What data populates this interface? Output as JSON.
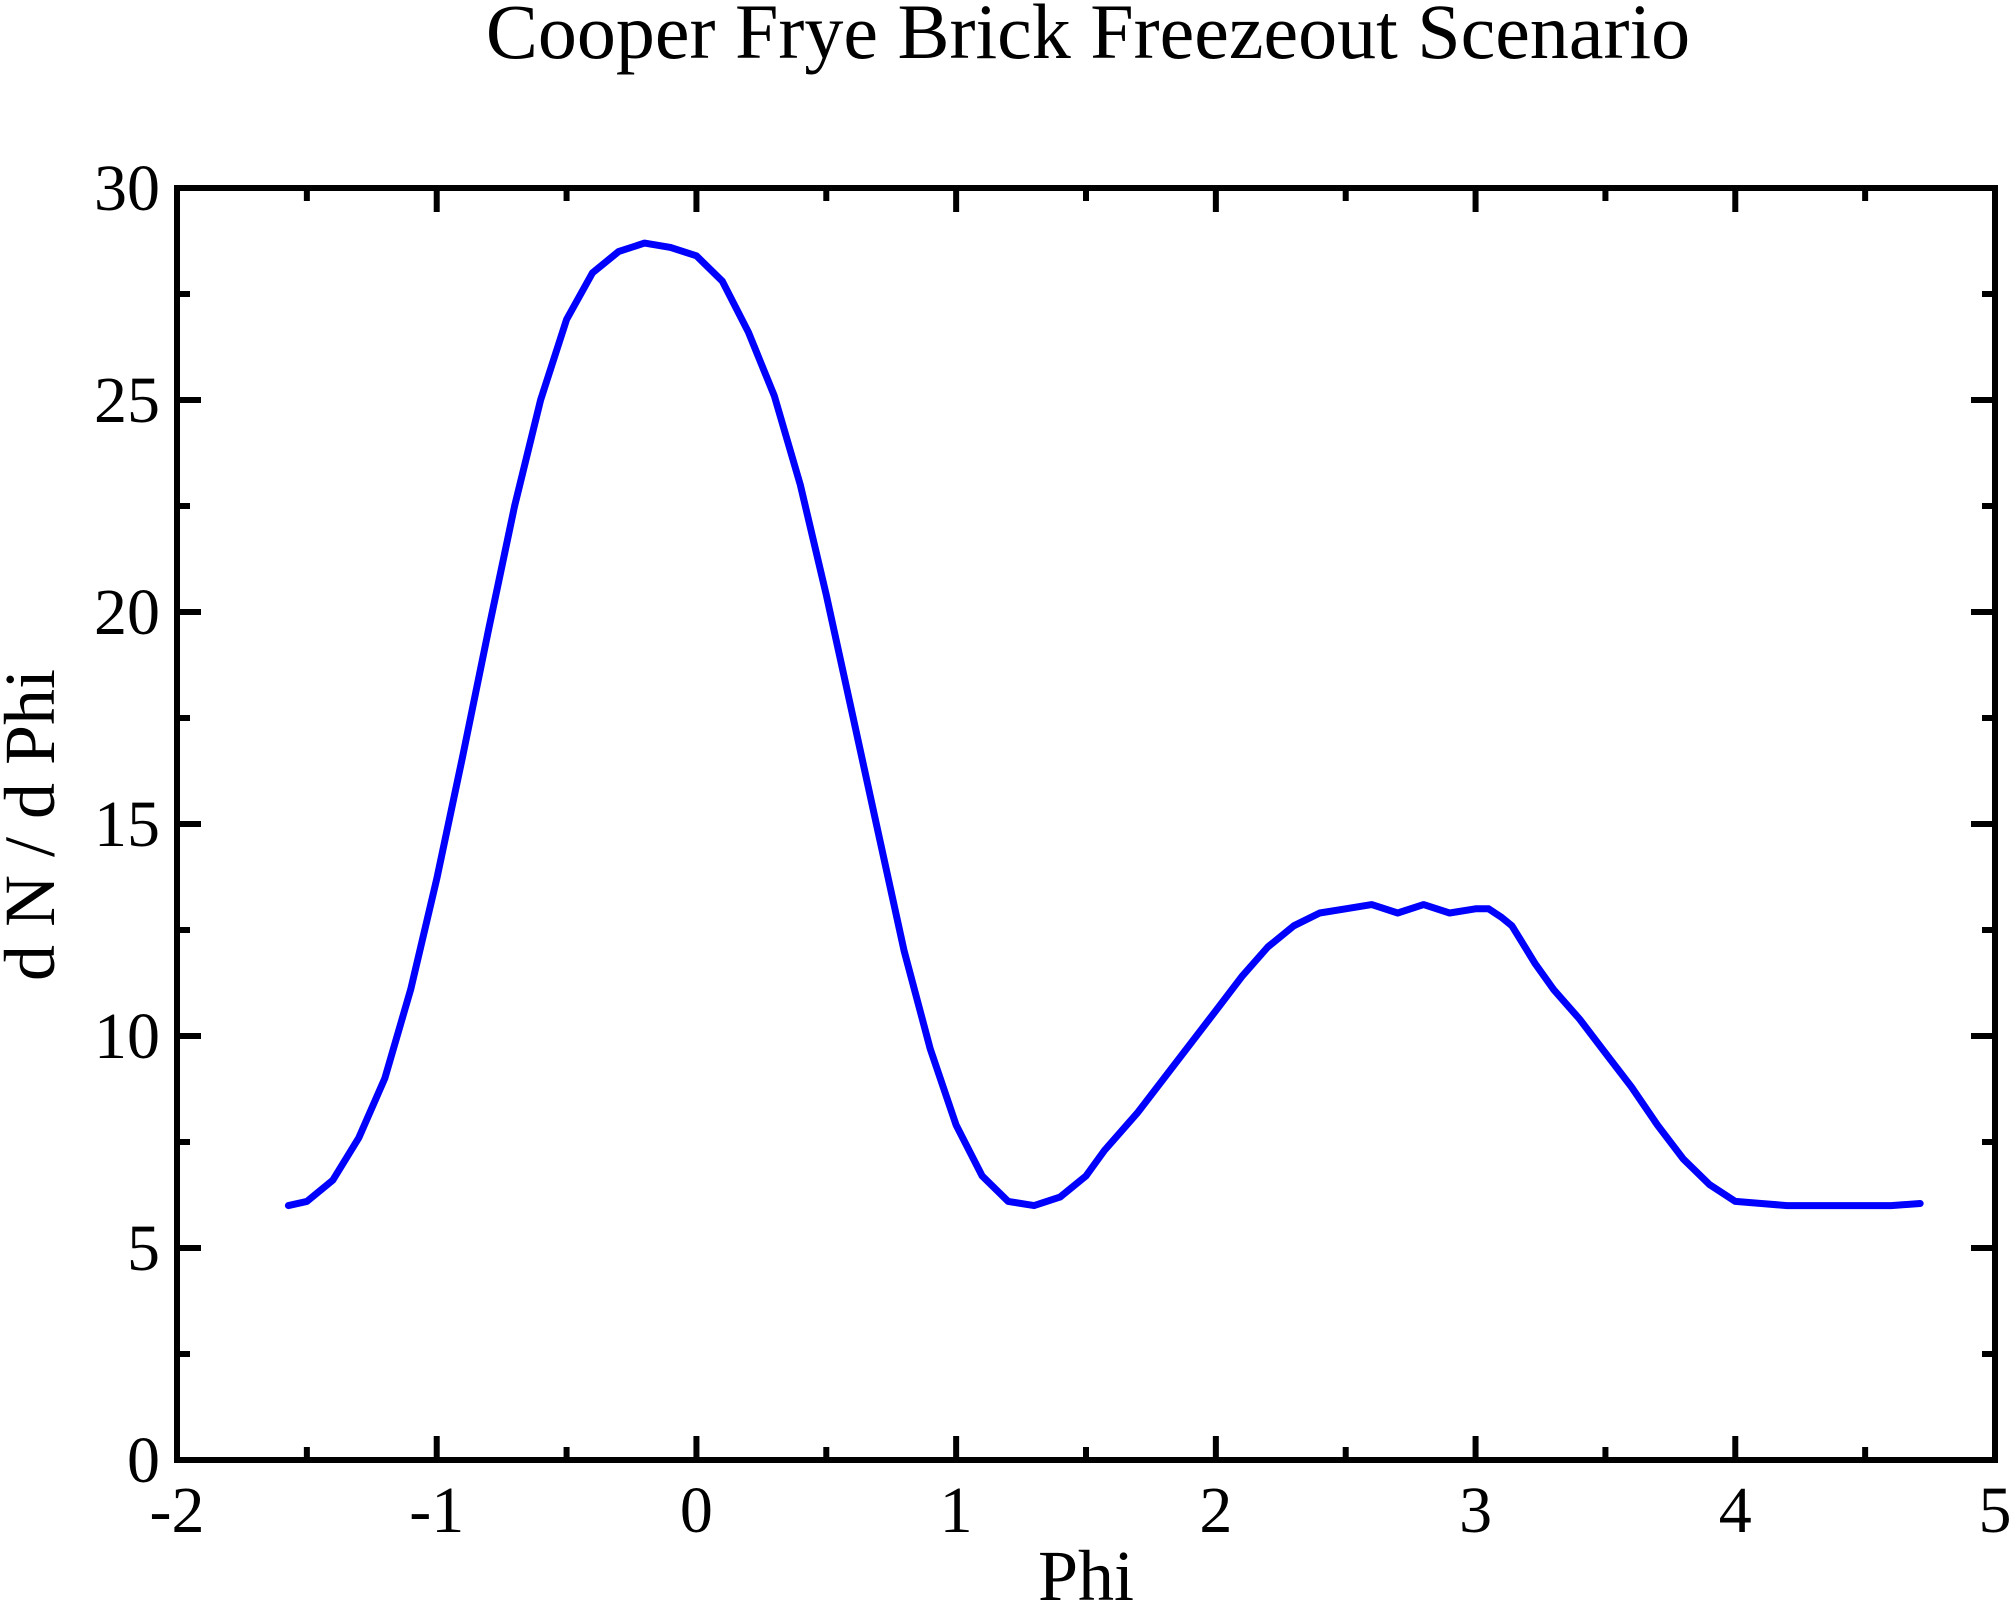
{
  "chart_data": {
    "type": "line",
    "title": "Cooper Frye Brick Freezeout Scenario",
    "xlabel": "Phi",
    "ylabel": "d N / d Phi",
    "xlim": [
      -2,
      5
    ],
    "ylim": [
      0,
      30
    ],
    "xticks": [
      "-2",
      "-1",
      "0",
      "1",
      "2",
      "3",
      "4",
      "5"
    ],
    "yticks": [
      "0",
      "5",
      "10",
      "15",
      "20",
      "25",
      "30"
    ],
    "grid": false,
    "legend": "none",
    "series": [
      {
        "color": "#0000ff",
        "x": [
          -1.571,
          -1.5,
          -1.4,
          -1.3,
          -1.2,
          -1.1,
          -1.0,
          -0.9,
          -0.8,
          -0.7,
          -0.6,
          -0.5,
          -0.4,
          -0.3,
          -0.2,
          -0.1,
          0.0,
          0.1,
          0.2,
          0.3,
          0.4,
          0.5,
          0.6,
          0.7,
          0.8,
          0.9,
          1.0,
          1.1,
          1.2,
          1.3,
          1.4,
          1.5,
          1.571,
          1.7,
          1.8,
          1.9,
          2.0,
          2.1,
          2.2,
          2.3,
          2.4,
          2.5,
          2.6,
          2.7,
          2.8,
          2.9,
          3.0,
          3.05,
          3.1,
          3.14,
          3.18,
          3.23,
          3.3,
          3.4,
          3.5,
          3.6,
          3.7,
          3.8,
          3.9,
          4.0,
          4.1,
          4.2,
          4.3,
          4.4,
          4.5,
          4.6,
          4.712
        ],
        "values": [
          6.0,
          6.1,
          6.6,
          7.6,
          9.0,
          11.1,
          13.7,
          16.6,
          19.6,
          22.5,
          25.0,
          26.9,
          28.0,
          28.5,
          28.7,
          28.6,
          28.4,
          27.8,
          26.6,
          25.1,
          23.0,
          20.4,
          17.6,
          14.8,
          12.0,
          9.7,
          7.9,
          6.7,
          6.1,
          6.0,
          6.2,
          6.7,
          7.3,
          8.2,
          9.0,
          9.8,
          10.6,
          11.4,
          12.1,
          12.6,
          12.9,
          13.0,
          13.1,
          12.9,
          13.1,
          12.9,
          13.0,
          13.0,
          12.8,
          12.6,
          12.2,
          11.7,
          11.1,
          10.4,
          9.6,
          8.8,
          7.9,
          7.1,
          6.5,
          6.1,
          6.05,
          6.0,
          6.0,
          6.0,
          6.0,
          6.0,
          6.05
        ]
      }
    ]
  }
}
